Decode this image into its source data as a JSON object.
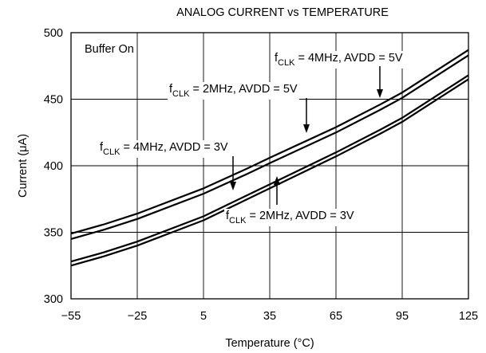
{
  "chart_data": {
    "type": "line",
    "title": "ANALOG CURRENT vs TEMPERATURE",
    "xlabel": "Temperature (°C)",
    "ylabel": "Current (μA)",
    "xlim": [
      -55,
      125
    ],
    "ylim": [
      300,
      500
    ],
    "x_ticks": [
      -55,
      -25,
      5,
      35,
      65,
      95,
      125
    ],
    "x_tick_labels": [
      "−55",
      "−25",
      "5",
      "35",
      "65",
      "95",
      "125"
    ],
    "y_ticks": [
      300,
      350,
      400,
      450,
      500
    ],
    "y_tick_labels": [
      "300",
      "350",
      "400",
      "450",
      "500"
    ],
    "grid": true,
    "annotation": "Buffer On",
    "series": [
      {
        "name": "fCLK = 4MHz, AVDD = 5V",
        "label_parts": {
          "f": "f",
          "sub": "CLK",
          "rest": " = 4MHz, AVDD = 5V"
        },
        "x": [
          -55,
          -40,
          -25,
          5,
          25,
          35,
          65,
          85,
          95,
          125
        ],
        "y": [
          349,
          356,
          364,
          383,
          398,
          406,
          429,
          446,
          455,
          487
        ]
      },
      {
        "name": "fCLK = 2MHz, AVDD = 5V",
        "label_parts": {
          "f": "f",
          "sub": "CLK",
          "rest": " = 2MHz, AVDD = 5V"
        },
        "x": [
          -55,
          -40,
          -25,
          5,
          25,
          35,
          65,
          85,
          95,
          125
        ],
        "y": [
          345,
          352,
          360,
          379,
          394,
          402,
          425,
          442,
          451,
          483
        ]
      },
      {
        "name": "fCLK = 4MHz, AVDD = 3V",
        "label_parts": {
          "f": "f",
          "sub": "CLK",
          "rest": " = 4MHz, AVDD = 3V"
        },
        "x": [
          -55,
          -40,
          -25,
          5,
          25,
          35,
          65,
          85,
          95,
          125
        ],
        "y": [
          328,
          335,
          343,
          362,
          378,
          386,
          410,
          427,
          436,
          468
        ]
      },
      {
        "name": "fCLK = 2MHz, AVDD = 3V",
        "label_parts": {
          "f": "f",
          "sub": "CLK",
          "rest": " = 2MHz, AVDD = 3V"
        },
        "x": [
          -55,
          -40,
          -25,
          5,
          25,
          35,
          65,
          85,
          95,
          125
        ],
        "y": [
          325,
          332,
          340,
          359,
          375,
          383,
          407,
          424,
          433,
          465
        ]
      }
    ]
  }
}
